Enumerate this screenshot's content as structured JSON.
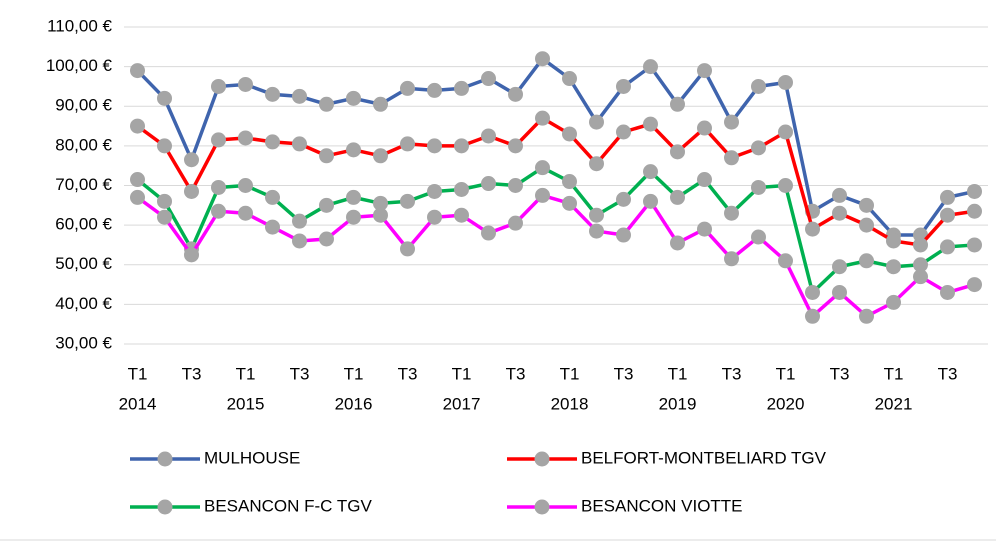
{
  "chart_data": {
    "type": "line",
    "categories": [
      "T1",
      null,
      "T3",
      null,
      "T1",
      null,
      "T3",
      null,
      "T1",
      null,
      "T3",
      null,
      "T1",
      null,
      "T3",
      null,
      "T1",
      null,
      "T3",
      null,
      "T1",
      null,
      "T3",
      null,
      "T1",
      null,
      "T3",
      null,
      "T1",
      null,
      "T3",
      null
    ],
    "years": [
      "2014",
      "2015",
      "2016",
      "2017",
      "2018",
      "2019",
      "2020",
      "2021"
    ],
    "ylim": [
      30,
      110
    ],
    "yticks": [
      {
        "value": 30,
        "label": "30,00 €"
      },
      {
        "value": 40,
        "label": "40,00 €"
      },
      {
        "value": 50,
        "label": "50,00 €"
      },
      {
        "value": 60,
        "label": "60,00 €"
      },
      {
        "value": 70,
        "label": "70,00 €"
      },
      {
        "value": 80,
        "label": "80,00 €"
      },
      {
        "value": 90,
        "label": "90,00 €"
      },
      {
        "value": 100,
        "label": "100,00 €"
      },
      {
        "value": 110,
        "label": "110,00 €"
      }
    ],
    "grid": true,
    "marker_color": "#a5a5a5",
    "legend": "bottom",
    "series": [
      {
        "name": "MULHOUSE",
        "color": "#3f64ad",
        "values": [
          99,
          92,
          76.5,
          95,
          95.5,
          93,
          92.5,
          90.5,
          92,
          90.5,
          94.5,
          94,
          94.5,
          97,
          93,
          102,
          97,
          86,
          95,
          100,
          90.5,
          99,
          86,
          95,
          96,
          63.5,
          67.5,
          65,
          57.5,
          57.5,
          67,
          68.5
        ]
      },
      {
        "name": "BELFORT-MONTBELIARD TGV",
        "color": "#ff0000",
        "values": [
          85,
          80,
          68.5,
          81.5,
          82,
          81,
          80.5,
          77.5,
          79,
          77.5,
          80.5,
          80,
          80,
          82.5,
          80,
          87,
          83,
          75.5,
          83.5,
          85.5,
          78.5,
          84.5,
          77,
          79.5,
          83.5,
          59,
          63,
          60,
          56,
          55,
          62.5,
          63.5
        ]
      },
      {
        "name": "BESANCON F-C TGV",
        "color": "#00b050",
        "values": [
          71.5,
          66,
          54,
          69.5,
          70,
          67,
          61,
          65,
          67,
          65.5,
          66,
          68.5,
          69,
          70.5,
          70,
          74.5,
          71,
          62.5,
          66.5,
          73.5,
          67,
          71.5,
          63,
          69.5,
          70,
          43,
          49.5,
          51,
          49.5,
          50,
          54.5,
          55
        ]
      },
      {
        "name": "BESANCON VIOTTE",
        "color": "#ff00ff",
        "values": [
          67,
          62,
          52.5,
          63.5,
          63,
          59.5,
          56,
          56.5,
          62,
          62.5,
          54,
          62,
          62.5,
          58,
          60.5,
          67.5,
          65.5,
          58.5,
          57.5,
          66,
          55.5,
          59,
          51.5,
          57,
          51,
          37,
          43,
          37,
          40.5,
          47,
          43,
          45
        ]
      }
    ]
  }
}
